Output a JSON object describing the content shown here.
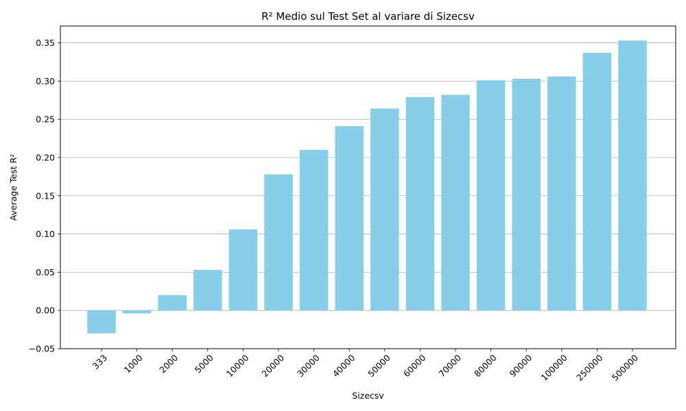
{
  "chart_data": {
    "type": "bar",
    "title": "R² Medio sul Test Set al variare di Sizecsv",
    "xlabel": "Sizecsv",
    "ylabel": "Average Test R²",
    "categories": [
      "333",
      "1000",
      "2000",
      "5000",
      "10000",
      "20000",
      "30000",
      "40000",
      "50000",
      "60000",
      "70000",
      "80000",
      "90000",
      "100000",
      "250000",
      "500000"
    ],
    "values": [
      -0.03,
      -0.004,
      0.02,
      0.053,
      0.106,
      0.178,
      0.21,
      0.241,
      0.264,
      0.279,
      0.282,
      0.301,
      0.303,
      0.306,
      0.337,
      0.353
    ],
    "ylim": [
      -0.05,
      0.372
    ],
    "yticks": [
      -0.05,
      0.0,
      0.05,
      0.1,
      0.15,
      0.2,
      0.25,
      0.3,
      0.35
    ],
    "ytick_labels": [
      "−0.05",
      "0.00",
      "0.05",
      "0.10",
      "0.15",
      "0.20",
      "0.25",
      "0.30",
      "0.35"
    ],
    "grid": "horizontal",
    "bar_color": "#87CEEB",
    "grid_color": "#b0b0b0"
  }
}
